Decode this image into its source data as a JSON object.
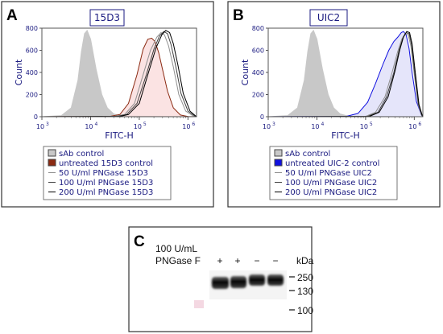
{
  "chart_data": [
    {
      "panel": "A",
      "type": "area",
      "title": "15D3",
      "xlabel": "FITC-H",
      "ylabel": "Count",
      "x_scale": "log",
      "xlim": [
        1000,
        1500000
      ],
      "ylim": [
        0,
        800
      ],
      "x_ticks": [
        "3",
        "4",
        "5",
        "6"
      ],
      "y_ticks": [
        "0",
        "200",
        "400",
        "600",
        "800"
      ],
      "legend_entries": [
        "sAb control",
        "untreated 15D3 control",
        "50 U/ml PNGase 15D3",
        "100 U/ml PNGase 15D3",
        "200 U/ml PNGase 15D3"
      ],
      "series": [
        {
          "name": "sAb control",
          "color": "#c8c8c8",
          "fill": true,
          "x": [
            1000,
            2500,
            4000,
            5500,
            6500,
            7500,
            8500,
            10000,
            13000,
            17000,
            22000,
            30000,
            45000,
            1500000
          ],
          "y": [
            0,
            10,
            80,
            330,
            590,
            750,
            780,
            700,
            430,
            200,
            80,
            25,
            5,
            0
          ]
        },
        {
          "name": "untreated 15D3 control",
          "color": "#8b2a12",
          "fill": true,
          "fill_color": "#f7cccc",
          "x": [
            1000,
            25000,
            40000,
            60000,
            90000,
            120000,
            150000,
            180000,
            210000,
            250000,
            300000,
            380000,
            500000,
            700000,
            1000000,
            1500000
          ],
          "y": [
            0,
            3,
            20,
            120,
            380,
            610,
            700,
            710,
            680,
            580,
            430,
            230,
            80,
            15,
            2,
            0
          ]
        },
        {
          "name": "50 U/ml PNGase 15D3",
          "color": "#909090",
          "fill": false,
          "x": [
            1000,
            30000,
            50000,
            80000,
            120000,
            170000,
            230000,
            280000,
            330000,
            400000,
            500000,
            650000,
            900000,
            1300000,
            1500000
          ],
          "y": [
            0,
            3,
            20,
            120,
            380,
            600,
            720,
            760,
            740,
            640,
            450,
            200,
            50,
            5,
            0
          ]
        },
        {
          "name": "100 U/ml PNGase 15D3",
          "color": "#404040",
          "fill": false,
          "x": [
            1000,
            35000,
            55000,
            90000,
            140000,
            200000,
            260000,
            320000,
            380000,
            450000,
            560000,
            720000,
            1000000,
            1400000,
            1500000
          ],
          "y": [
            0,
            3,
            20,
            120,
            380,
            610,
            730,
            770,
            750,
            650,
            460,
            210,
            50,
            5,
            0
          ]
        },
        {
          "name": "200 U/ml PNGase 15D3",
          "color": "#000000",
          "fill": false,
          "x": [
            1000,
            40000,
            60000,
            100000,
            150000,
            220000,
            290000,
            350000,
            420000,
            500000,
            620000,
            800000,
            1100000,
            1500000
          ],
          "y": [
            0,
            3,
            20,
            120,
            380,
            620,
            740,
            780,
            760,
            660,
            470,
            210,
            50,
            0
          ]
        }
      ]
    },
    {
      "panel": "B",
      "type": "area",
      "title": "UIC2",
      "xlabel": "FITC-H",
      "ylabel": "Count",
      "x_scale": "log",
      "xlim": [
        1000,
        1500000
      ],
      "ylim": [
        0,
        800
      ],
      "x_ticks": [
        "3",
        "4",
        "5",
        "6"
      ],
      "y_ticks": [
        "0",
        "200",
        "400",
        "600",
        "800"
      ],
      "legend_entries": [
        "sAb control",
        "untreated UIC-2 control",
        "50 U/ml PNGase UIC2",
        "100 U/ml PNGase UIC2",
        "200 U/ml PNGase UIC2"
      ],
      "series": [
        {
          "name": "sAb control",
          "color": "#c8c8c8",
          "fill": true,
          "x": [
            1000,
            2500,
            4000,
            5500,
            6500,
            7500,
            8500,
            10000,
            13000,
            17000,
            22000,
            30000,
            45000,
            1500000
          ],
          "y": [
            0,
            10,
            80,
            330,
            590,
            750,
            780,
            700,
            430,
            200,
            80,
            25,
            5,
            0
          ]
        },
        {
          "name": "untreated UIC-2 control",
          "color": "#1010e0",
          "fill": true,
          "fill_color": "#cfcff5",
          "x": [
            1000,
            40000,
            70000,
            110000,
            160000,
            230000,
            300000,
            380000,
            460000,
            540000,
            600000,
            680000,
            780000,
            900000,
            1100000,
            1400000,
            1500000
          ],
          "y": [
            0,
            3,
            30,
            130,
            300,
            480,
            600,
            680,
            720,
            760,
            770,
            740,
            620,
            400,
            140,
            15,
            0
          ]
        },
        {
          "name": "50 U/ml PNGase UIC2",
          "color": "#909090",
          "fill": false,
          "x": [
            1000,
            100000,
            160000,
            250000,
            350000,
            450000,
            550000,
            650000,
            750000,
            850000,
            1000000,
            1200000,
            1400000,
            1500000
          ],
          "y": [
            0,
            3,
            40,
            180,
            400,
            580,
            700,
            750,
            740,
            640,
            380,
            110,
            15,
            0
          ]
        },
        {
          "name": "100 U/ml PNGase UIC2",
          "color": "#404040",
          "fill": false,
          "x": [
            1000,
            110000,
            180000,
            270000,
            380000,
            480000,
            580000,
            680000,
            780000,
            880000,
            1020000,
            1220000,
            1420000,
            1500000
          ],
          "y": [
            0,
            3,
            40,
            180,
            400,
            590,
            710,
            760,
            750,
            650,
            390,
            110,
            15,
            0
          ]
        },
        {
          "name": "200 U/ml PNGase UIC2",
          "color": "#000000",
          "fill": false,
          "x": [
            1000,
            120000,
            190000,
            290000,
            400000,
            500000,
            600000,
            700000,
            800000,
            900000,
            1050000,
            1250000,
            1450000,
            1500000
          ],
          "y": [
            0,
            3,
            40,
            180,
            410,
            600,
            720,
            770,
            760,
            660,
            400,
            110,
            15,
            0
          ]
        }
      ]
    }
  ],
  "blot": {
    "panel": "C",
    "treatment_label_line1": "100 U/mL",
    "treatment_label_line2": "PNGase F",
    "lanes": [
      "+",
      "+",
      "−",
      "−"
    ],
    "unit": "kDa",
    "markers": [
      {
        "label": "250",
        "kda": 250
      },
      {
        "label": "130",
        "kda": 130
      },
      {
        "label": "100",
        "kda": 100
      }
    ]
  }
}
